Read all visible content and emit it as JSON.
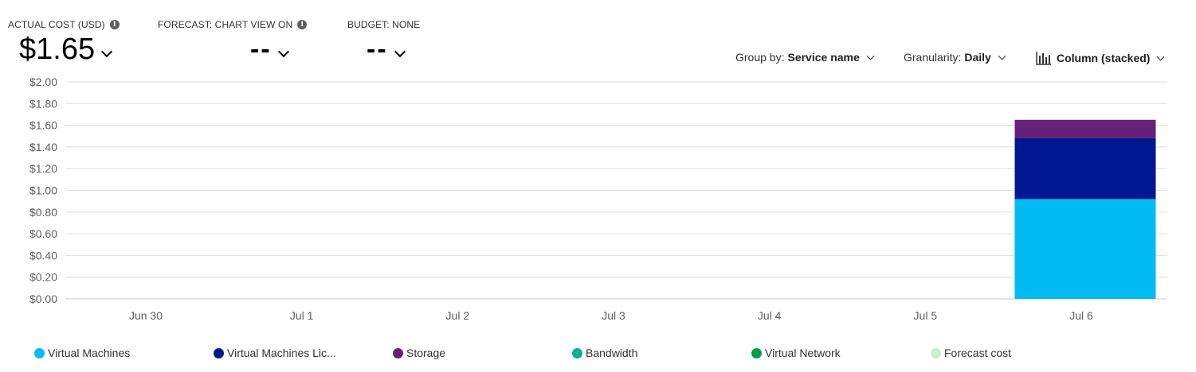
{
  "kpis": {
    "actual": {
      "label": "ACTUAL COST (USD)",
      "value": "$1.65"
    },
    "forecast": {
      "label": "FORECAST: CHART VIEW ON",
      "value": "--"
    },
    "budget": {
      "label": "BUDGET: NONE",
      "value": "--"
    }
  },
  "controls": {
    "group_by": {
      "label": "Group by:",
      "value": "Service name"
    },
    "granularity": {
      "label": "Granularity:",
      "value": "Daily"
    },
    "chart_type": {
      "value": "Column (stacked)"
    }
  },
  "icons": {
    "info": "info-icon",
    "chevron": "chevron-down-icon",
    "chart": "column-chart-icon"
  },
  "chart_data": {
    "type": "bar",
    "stacked": true,
    "categories": [
      "Jun 30",
      "Jul 1",
      "Jul 2",
      "Jul 3",
      "Jul 4",
      "Jul 5",
      "Jul 6"
    ],
    "y_ticks": [
      "$0.00",
      "$0.20",
      "$0.40",
      "$0.60",
      "$0.80",
      "$1.00",
      "$1.20",
      "$1.40",
      "$1.60",
      "$1.80",
      "$2.00"
    ],
    "ylim": [
      0,
      2.0
    ],
    "grid": true,
    "legend_position": "bottom",
    "series": [
      {
        "name": "Virtual Machines",
        "color": "#00bcf2",
        "values": [
          0,
          0,
          0,
          0,
          0,
          0,
          0.92
        ]
      },
      {
        "name": "Virtual Machines Lic...",
        "color": "#00188f",
        "values": [
          0,
          0,
          0,
          0,
          0,
          0,
          0.56
        ]
      },
      {
        "name": "Storage",
        "color": "#68217a",
        "values": [
          0,
          0,
          0,
          0,
          0,
          0,
          0.17
        ]
      },
      {
        "name": "Bandwidth",
        "color": "#00b294",
        "values": [
          0,
          0,
          0,
          0,
          0,
          0,
          0
        ]
      },
      {
        "name": "Virtual Network",
        "color": "#009e49",
        "values": [
          0,
          0,
          0,
          0,
          0,
          0,
          0
        ]
      },
      {
        "name": "Forecast cost",
        "color": "#c6efce",
        "values": [
          0,
          0,
          0,
          0,
          0,
          0,
          0
        ]
      }
    ]
  }
}
